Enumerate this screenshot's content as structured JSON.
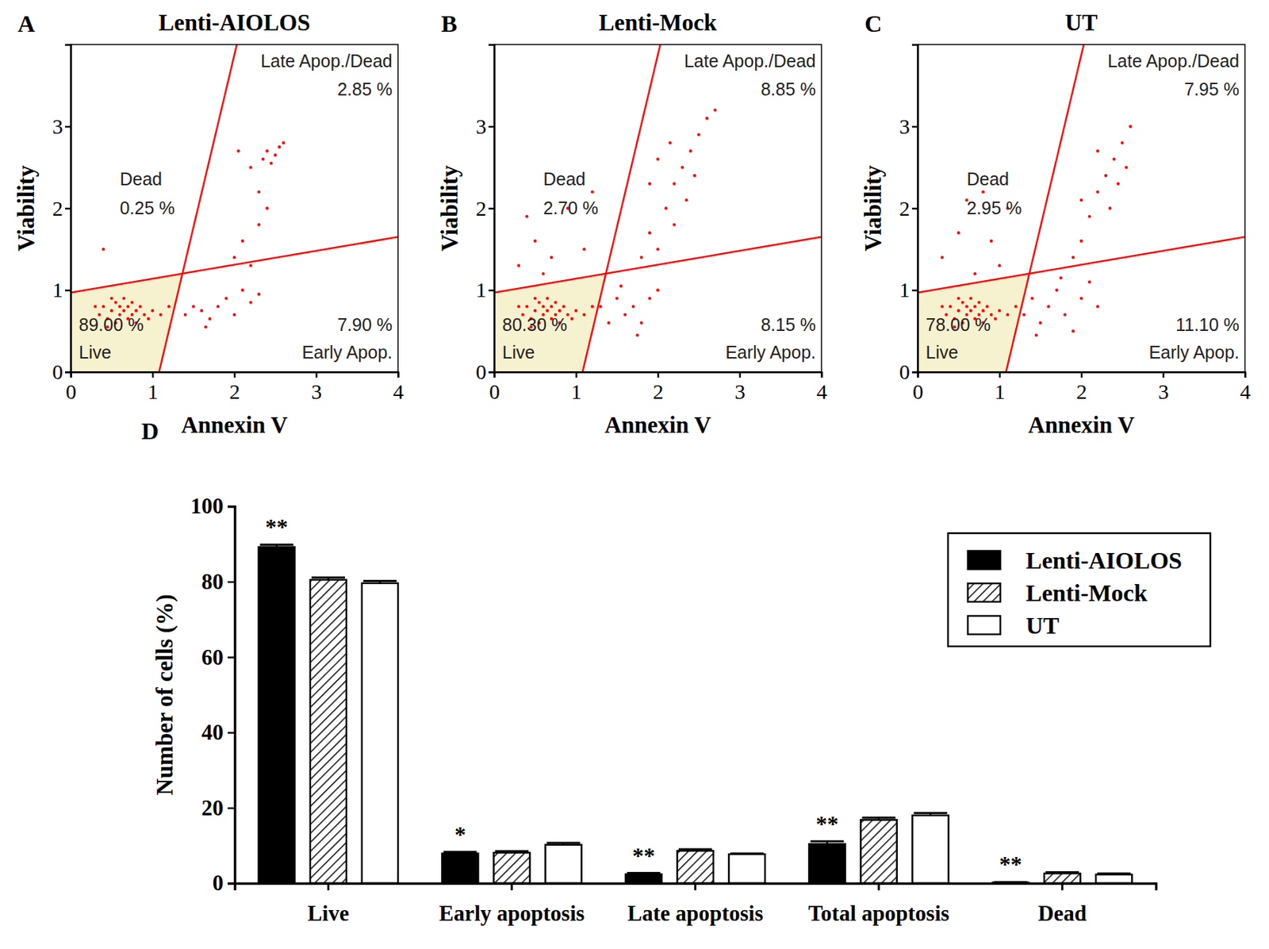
{
  "chart_data": [
    {
      "type": "scatter",
      "panel": "A",
      "title": "Lenti-AIOLOS",
      "x_label": "Annexin V",
      "y_label": "Viability",
      "xlim": [
        0,
        4
      ],
      "ylim": [
        0,
        4
      ],
      "xticks": [
        0,
        1,
        2,
        3,
        4
      ],
      "yticks": [
        0,
        1,
        2,
        3
      ],
      "series": [
        {
          "color": "#ff0000",
          "marker": "dot",
          "x": [
            0.35,
            0.4,
            0.45,
            0.5,
            0.55,
            0.55,
            0.6,
            0.6,
            0.65,
            0.65,
            0.7,
            0.7,
            0.75,
            0.75,
            0.8,
            0.8,
            0.85,
            0.9,
            0.5,
            0.45,
            0.3,
            0.95,
            1.0,
            1.1,
            1.2,
            1.4,
            1.5,
            1.6,
            1.7,
            1.8,
            1.9,
            2.0,
            2.1,
            2.2,
            2.3,
            1.65,
            2.0,
            2.1,
            2.2,
            2.3,
            2.4,
            2.35,
            2.4,
            2.45,
            2.5,
            2.55,
            2.2,
            2.3,
            2.6,
            2.05,
            0.4
          ],
          "values": [
            0.7,
            0.8,
            0.65,
            0.75,
            0.85,
            0.6,
            0.7,
            0.8,
            0.75,
            0.9,
            0.65,
            0.8,
            0.7,
            0.85,
            0.6,
            0.75,
            0.8,
            0.7,
            0.9,
            0.55,
            0.8,
            0.65,
            0.75,
            0.7,
            0.8,
            0.7,
            0.8,
            0.75,
            0.65,
            0.8,
            0.9,
            0.7,
            1.0,
            0.85,
            0.95,
            0.55,
            1.4,
            1.6,
            1.3,
            1.8,
            2.0,
            2.6,
            2.7,
            2.55,
            2.65,
            2.75,
            2.5,
            2.2,
            2.8,
            2.7,
            1.5
          ]
        }
      ],
      "gates": [
        {
          "x": [
            1.08,
            2.03
          ],
          "y": [
            0,
            4
          ]
        },
        {
          "x": [
            0,
            4
          ],
          "y": [
            0.97,
            1.65
          ]
        }
      ],
      "quadrants": [
        {
          "label": "Late Apop./Dead",
          "value": 2.85,
          "value_label": "2.85 %"
        },
        {
          "label": "Dead",
          "value": 0.25,
          "value_label": "0.25 %"
        },
        {
          "label": "Live",
          "value": 89.0,
          "value_label": "89.00 %"
        },
        {
          "label": "Early Apop.",
          "value": 7.9,
          "value_label": "7.90 %"
        }
      ]
    },
    {
      "type": "scatter",
      "panel": "B",
      "title": "Lenti-Mock",
      "x_label": "Annexin V",
      "y_label": "Viability",
      "xlim": [
        0,
        4
      ],
      "ylim": [
        0,
        4
      ],
      "xticks": [
        0,
        1,
        2,
        3,
        4
      ],
      "yticks": [
        0,
        1,
        2,
        3
      ],
      "series": [
        {
          "color": "#ff0000",
          "marker": "dot",
          "x": [
            0.35,
            0.4,
            0.45,
            0.5,
            0.55,
            0.55,
            0.6,
            0.6,
            0.65,
            0.65,
            0.7,
            0.7,
            0.75,
            0.75,
            0.8,
            0.8,
            0.85,
            0.9,
            0.5,
            0.45,
            0.3,
            0.95,
            1.0,
            1.1,
            1.2,
            1.3,
            1.4,
            1.5,
            1.6,
            1.7,
            1.8,
            1.9,
            2.0,
            1.75,
            1.55,
            1.8,
            1.9,
            2.0,
            2.1,
            2.2,
            2.3,
            2.4,
            2.5,
            2.6,
            2.2,
            2.0,
            2.35,
            2.45,
            1.9,
            2.7,
            2.15,
            0.3,
            0.5,
            0.7,
            0.9,
            0.6,
            1.1,
            0.4,
            1.2
          ],
          "values": [
            0.7,
            0.8,
            0.65,
            0.75,
            0.85,
            0.6,
            0.7,
            0.8,
            0.75,
            0.9,
            0.65,
            0.8,
            0.7,
            0.85,
            0.6,
            0.75,
            0.8,
            0.7,
            0.9,
            0.55,
            0.8,
            0.65,
            0.75,
            0.7,
            0.8,
            0.8,
            0.6,
            0.9,
            0.7,
            0.8,
            0.6,
            0.9,
            1.0,
            0.45,
            1.05,
            1.4,
            1.7,
            1.5,
            2.0,
            2.3,
            2.5,
            2.7,
            2.9,
            3.1,
            1.8,
            2.6,
            2.1,
            2.4,
            2.3,
            3.2,
            2.8,
            1.3,
            1.6,
            1.4,
            2.0,
            1.2,
            1.5,
            1.9,
            2.2
          ]
        }
      ],
      "gates": [
        {
          "x": [
            1.08,
            2.03
          ],
          "y": [
            0,
            4
          ]
        },
        {
          "x": [
            0,
            4
          ],
          "y": [
            0.97,
            1.65
          ]
        }
      ],
      "quadrants": [
        {
          "label": "Late Apop./Dead",
          "value": 8.85,
          "value_label": "8.85 %"
        },
        {
          "label": "Dead",
          "value": 2.7,
          "value_label": "2.70 %"
        },
        {
          "label": "Live",
          "value": 80.3,
          "value_label": "80.30 %"
        },
        {
          "label": "Early Apop.",
          "value": 8.15,
          "value_label": "8.15 %"
        }
      ]
    },
    {
      "type": "scatter",
      "panel": "C",
      "title": "UT",
      "x_label": "Annexin V",
      "y_label": "Viability",
      "xlim": [
        0,
        4
      ],
      "ylim": [
        0,
        4
      ],
      "xticks": [
        0,
        1,
        2,
        3,
        4
      ],
      "yticks": [
        0,
        1,
        2,
        3
      ],
      "series": [
        {
          "color": "#ff0000",
          "marker": "dot",
          "x": [
            0.35,
            0.4,
            0.45,
            0.5,
            0.55,
            0.55,
            0.6,
            0.6,
            0.65,
            0.65,
            0.7,
            0.7,
            0.75,
            0.75,
            0.8,
            0.8,
            0.85,
            0.9,
            0.5,
            0.45,
            0.3,
            0.95,
            1.0,
            1.1,
            1.2,
            1.3,
            1.4,
            1.5,
            1.6,
            1.7,
            1.8,
            1.9,
            2.0,
            2.1,
            1.45,
            1.75,
            2.2,
            1.9,
            2.0,
            2.1,
            2.2,
            2.3,
            2.4,
            2.5,
            2.6,
            2.35,
            2.45,
            2.55,
            2.2,
            2.0,
            0.3,
            0.5,
            0.7,
            0.9,
            1.1,
            0.6,
            0.8,
            1.0
          ],
          "values": [
            0.7,
            0.8,
            0.65,
            0.75,
            0.85,
            0.6,
            0.7,
            0.8,
            0.75,
            0.9,
            0.65,
            0.8,
            0.7,
            0.85,
            0.6,
            0.75,
            0.8,
            0.7,
            0.9,
            0.55,
            0.8,
            0.65,
            0.75,
            0.7,
            0.8,
            0.7,
            0.9,
            0.6,
            0.8,
            1.0,
            0.7,
            0.5,
            0.9,
            1.1,
            0.45,
            1.15,
            0.8,
            1.4,
            1.6,
            1.9,
            2.2,
            2.4,
            2.6,
            2.8,
            3.0,
            2.0,
            2.3,
            2.5,
            2.7,
            2.1,
            1.4,
            1.7,
            1.2,
            1.6,
            2.0,
            2.1,
            2.2,
            1.3
          ]
        }
      ],
      "gates": [
        {
          "x": [
            1.08,
            2.03
          ],
          "y": [
            0,
            4
          ]
        },
        {
          "x": [
            0,
            4
          ],
          "y": [
            0.97,
            1.65
          ]
        }
      ],
      "quadrants": [
        {
          "label": "Late Apop./Dead",
          "value": 7.95,
          "value_label": "7.95 %"
        },
        {
          "label": "Dead",
          "value": 2.95,
          "value_label": "2.95 %"
        },
        {
          "label": "Live",
          "value": 78.0,
          "value_label": "78.00 %"
        },
        {
          "label": "Early Apop.",
          "value": 11.1,
          "value_label": "11.10 %"
        }
      ]
    },
    {
      "type": "bar",
      "panel": "D",
      "y_label": "Number of cells (%)",
      "categories": [
        "Live",
        "Early apoptosis",
        "Late apoptosis",
        "Total apoptosis",
        "Dead"
      ],
      "ylim": [
        0,
        100
      ],
      "yticks": [
        0,
        20,
        40,
        60,
        80,
        100
      ],
      "legend": "upper-right",
      "series": [
        {
          "name": "Lenti-AIOLOS",
          "color": "#000000",
          "marker": "solid",
          "values": [
            89.2,
            7.9,
            2.4,
            10.4,
            0.2
          ],
          "errors": [
            0.6,
            0.4,
            0.3,
            0.7,
            0.1
          ],
          "significance": [
            "**",
            "*",
            "**",
            "**",
            "**"
          ]
        },
        {
          "name": "Lenti-Mock",
          "color": "#000000",
          "marker": "hatch",
          "values": [
            80.5,
            8.1,
            8.6,
            16.8,
            2.6
          ],
          "errors": [
            0.6,
            0.4,
            0.4,
            0.6,
            0.3
          ]
        },
        {
          "name": "UT",
          "color": "#000000",
          "marker": "open",
          "values": [
            79.6,
            10.2,
            7.7,
            18.0,
            2.3
          ],
          "errors": [
            0.6,
            0.5,
            0.2,
            0.6,
            0.3
          ]
        }
      ]
    }
  ]
}
